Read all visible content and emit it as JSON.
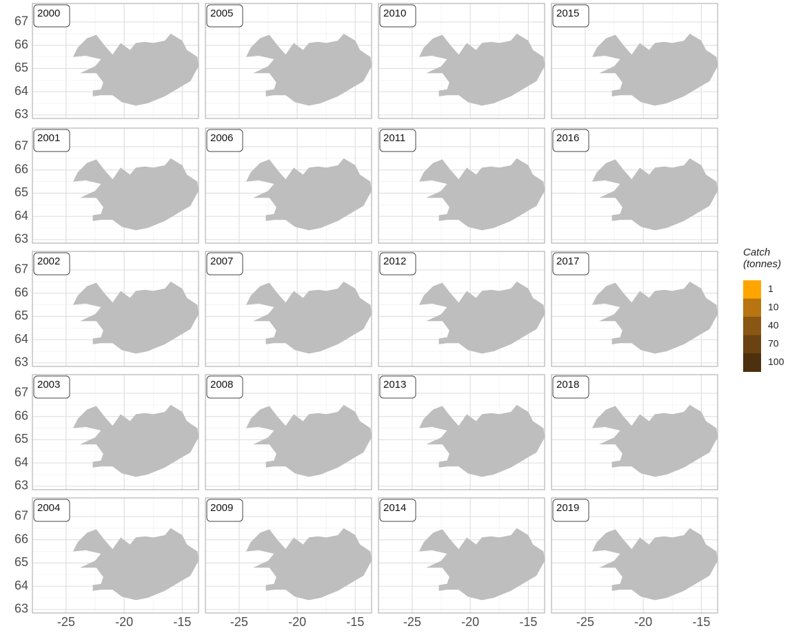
{
  "chart_data": {
    "type": "map",
    "facets": [
      "2000",
      "2005",
      "2010",
      "2015",
      "2001",
      "2006",
      "2011",
      "2016",
      "2002",
      "2007",
      "2012",
      "2017",
      "2003",
      "2008",
      "2013",
      "2018",
      "2004",
      "2009",
      "2014",
      "2019"
    ],
    "xlim": [
      -27.9,
      -13.6
    ],
    "ylim": [
      62.85,
      67.8
    ],
    "xticks": [
      -25,
      -20,
      -15
    ],
    "yticks": [
      63,
      64,
      65,
      66,
      67
    ],
    "grid": true,
    "land_color": "#bebebe",
    "legend": {
      "title": "Catch (tonnes)",
      "position": "right",
      "values": [
        1,
        10,
        40,
        70,
        100
      ],
      "colors": [
        "#ffa500",
        "#b87410",
        "#8a5613",
        "#6b4211",
        "#4d300d"
      ]
    }
  }
}
